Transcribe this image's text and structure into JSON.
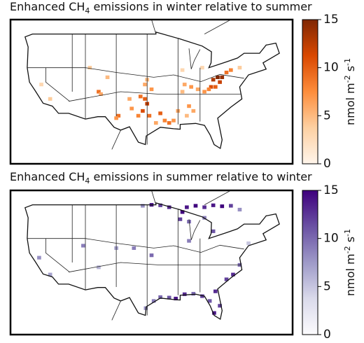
{
  "chart_data": [
    {
      "type": "heatmap-map",
      "title_parts": [
        "Enhanced CH",
        "4",
        " emissions in winter relative to summer"
      ],
      "colorbar_label_parts": [
        "nmol m",
        "-2",
        " s",
        "-1"
      ],
      "colormap": [
        "#fff5eb",
        "#fdd0a2",
        "#fd8d3c",
        "#d94801",
        "#7f2704"
      ],
      "xlim": [
        -128,
        -64
      ],
      "ylim": [
        22,
        52
      ],
      "clim": [
        0,
        15
      ],
      "cticks": [
        0,
        5,
        10,
        15
      ],
      "lon": [
        -81,
        -80,
        -80.5,
        -82,
        -81.5,
        -79,
        -82.5,
        -83,
        -84,
        -85.5,
        -87,
        -88.5,
        -89,
        -97.5,
        -98.5,
        -97,
        -98,
        -99,
        -96.5,
        -94,
        -93,
        -92,
        -91,
        -95,
        -100.5,
        -101,
        -103.5,
        -104,
        -97.5,
        -97,
        -96,
        -87.5,
        -86.5,
        -88,
        -108,
        -107.5,
        -106,
        -110,
        -119,
        -121,
        -78,
        -76,
        -84.5,
        -89,
        -90
      ],
      "lat": [
        40,
        40,
        39,
        39.5,
        38,
        41,
        38,
        37.5,
        37,
        37.5,
        38,
        38.5,
        37,
        35.5,
        36,
        34.5,
        33,
        32,
        32,
        32.5,
        31,
        30.5,
        31,
        30.5,
        33.5,
        35.5,
        32,
        31.5,
        38.5,
        39.5,
        37.5,
        34,
        33,
        32,
        37,
        36.5,
        40,
        42,
        35.5,
        38.5,
        41.5,
        42,
        42,
        41.5,
        33
      ],
      "values": [
        15,
        14,
        12,
        13,
        10,
        9,
        11,
        8,
        7,
        6,
        7,
        6,
        5,
        10,
        9,
        12,
        11,
        8,
        9,
        10,
        8,
        9,
        7,
        6,
        7,
        6,
        9,
        7,
        6,
        5,
        7,
        7,
        6,
        5,
        9,
        6,
        5,
        4,
        4,
        3,
        8,
        4,
        3,
        3,
        6
      ]
    },
    {
      "type": "heatmap-map",
      "title_parts": [
        "Enhanced CH",
        "4",
        " emissions in summer relative to winter"
      ],
      "colorbar_label_parts": [
        "nmol m",
        "-2",
        " s",
        "-1"
      ],
      "colormap": [
        "#fcfbfd",
        "#dadaeb",
        "#9e9ac8",
        "#6a51a3",
        "#3f007d"
      ],
      "xlim": [
        -128,
        -64
      ],
      "ylim": [
        22,
        52
      ],
      "clim": [
        0,
        15
      ],
      "cticks": [
        0,
        5,
        10,
        15
      ],
      "lon": [
        -89,
        -88,
        -86,
        -84,
        -82,
        -80,
        -78,
        -76,
        -92,
        -94,
        -96,
        -98,
        -89.5,
        -87.5,
        -84,
        -82,
        -81.5,
        -80.5,
        -81.8,
        -82.8,
        -84.5,
        -86.5,
        -88.5,
        -90.5,
        -92,
        -94,
        -95.5,
        -97.3,
        -77.5,
        -79,
        -76,
        -87.5,
        -96,
        -100,
        -104,
        -111.5,
        -121.5,
        -119,
        -108,
        -74
      ],
      "lat": [
        47.5,
        48.5,
        48.8,
        48.5,
        48.9,
        48.7,
        48.8,
        48,
        48.5,
        48.9,
        49,
        48.8,
        46,
        45.5,
        46.3,
        43.5,
        31,
        28,
        26.5,
        29,
        30,
        30.5,
        30.4,
        29.5,
        29.7,
        29.8,
        29,
        27.5,
        34.5,
        33.5,
        36.5,
        41.5,
        38.5,
        40,
        40,
        40.5,
        38,
        34.5,
        36,
        41
      ],
      "values": [
        15,
        14,
        15,
        13,
        14,
        15,
        12,
        8,
        13,
        12,
        14,
        8,
        12,
        10,
        9,
        11,
        13,
        12,
        14,
        11,
        12,
        10,
        13,
        14,
        11,
        10,
        9,
        8,
        13,
        12,
        10,
        9,
        10,
        9,
        7,
        9,
        8,
        7,
        6,
        5
      ]
    }
  ]
}
